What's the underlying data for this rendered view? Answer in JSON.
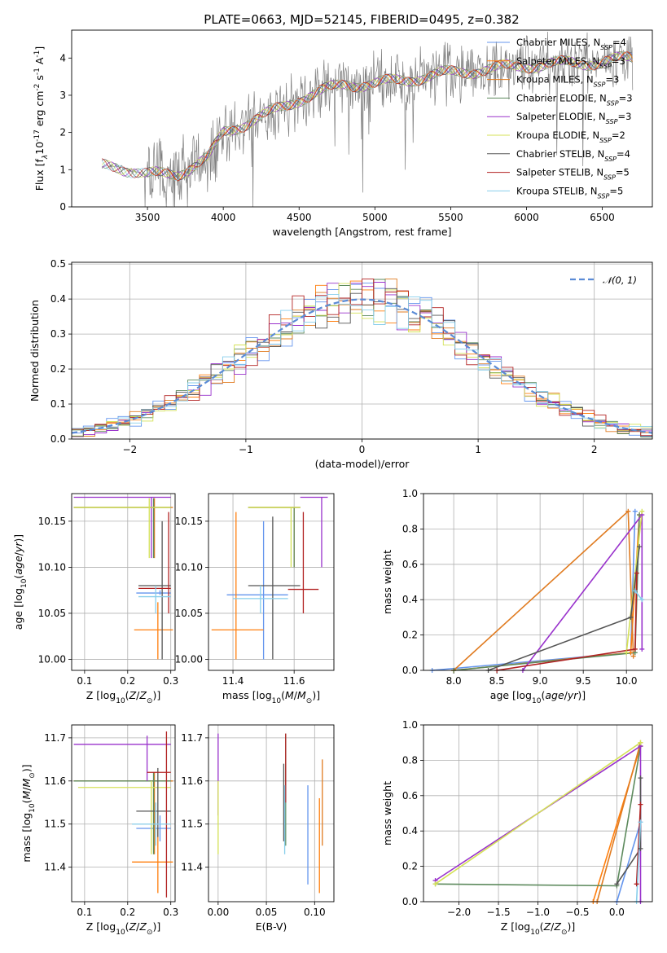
{
  "figure": {
    "title": "PLATE=0663, MJD=52145, FIBERID=0495, z=0.382"
  },
  "models": [
    {
      "name": "Chabrier MILES",
      "nssp": "4",
      "color": "#6495ed"
    },
    {
      "name": "Salpeter MILES",
      "nssp": "3",
      "color": "#ff7f0e"
    },
    {
      "name": "Kroupa MILES",
      "nssp": "3",
      "color": "#e07b20"
    },
    {
      "name": "Chabrier ELODIE",
      "nssp": "3",
      "color": "#5d8a5d"
    },
    {
      "name": "Salpeter ELODIE",
      "nssp": "3",
      "color": "#9932cc"
    },
    {
      "name": "Kroupa ELODIE",
      "nssp": "2",
      "color": "#d4e157"
    },
    {
      "name": "Chabrier STELIB",
      "nssp": "4",
      "color": "#555555"
    },
    {
      "name": "Salpeter STELIB",
      "nssp": "5",
      "color": "#b22222"
    },
    {
      "name": "Kroupa STELIB",
      "nssp": "5",
      "color": "#87ceeb"
    }
  ],
  "chart_data": [
    {
      "id": "spectrum",
      "type": "line",
      "xlabel": "wavelength [Angstrom, rest frame]",
      "ylabel": "Flux [f_λ10^-17 erg cm^-2 s^-1 A^-1]",
      "xlim": [
        3000,
        6830
      ],
      "ylim": [
        0,
        4.75
      ],
      "xticks": [
        3500,
        4000,
        4500,
        5000,
        5500,
        6000,
        6500
      ],
      "yticks": [
        0,
        1,
        2,
        3,
        4
      ],
      "legend": "upper-right",
      "data_color": "#808080",
      "continuum": {
        "x": [
          3200,
          3300,
          3500,
          3700,
          3900,
          4000,
          4300,
          4500,
          4800,
          5000,
          5500,
          6000,
          6500,
          6700
        ],
        "y": [
          1.1,
          1.1,
          0.85,
          0.9,
          1.3,
          2.0,
          2.5,
          2.9,
          3.3,
          3.3,
          3.6,
          3.8,
          3.9,
          4.0
        ]
      }
    },
    {
      "id": "residuals",
      "type": "line",
      "xlabel": "(data-model)/error",
      "ylabel": "Normed distribution",
      "xlim": [
        -2.5,
        2.5
      ],
      "ylim": [
        0,
        0.505
      ],
      "xticks": [
        -2,
        -1,
        0,
        1,
        2
      ],
      "yticks": [
        0.0,
        0.1,
        0.2,
        0.3,
        0.4,
        0.5
      ],
      "grid": true,
      "legend": "upper-right",
      "reference_label": "𝒩(0, 1)",
      "reference_color": "#5b8bd6"
    },
    {
      "id": "age-vs-z",
      "type": "scatter",
      "xlabel": "Z [log10(Z/Z⊙)]",
      "ylabel": "age [log10(age/yr)]",
      "xlim": [
        0.07,
        0.31
      ],
      "ylim": [
        9.988,
        10.18
      ],
      "xticks": [
        0.1,
        0.2,
        0.3
      ],
      "yticks": [
        10.0,
        10.05,
        10.1,
        10.15
      ],
      "grid": true,
      "points": [
        {
          "m": 0,
          "x": 0.275,
          "y": 10.072,
          "xe": [
            0.22,
            0.3
          ],
          "ye": [
            10.07,
            10.075
          ]
        },
        {
          "m": 1,
          "x": 0.27,
          "y": 10.032,
          "xe": [
            0.215,
            0.305
          ],
          "ye": [
            10.0,
            10.062
          ]
        },
        {
          "m": 2,
          "x": 0.262,
          "y": 10.165,
          "xe": [
            0.075,
            0.305
          ],
          "ye": [
            10.11,
            10.175
          ]
        },
        {
          "m": 3,
          "x": 0.26,
          "y": 10.165,
          "xe": [
            0.075,
            0.3
          ],
          "ye": [
            10.11,
            10.175
          ]
        },
        {
          "m": 4,
          "x": 0.255,
          "y": 10.176,
          "xe": [
            0.075,
            0.3
          ],
          "ye": [
            10.11,
            10.176
          ]
        },
        {
          "m": 5,
          "x": 0.25,
          "y": 10.165,
          "xe": [
            0.075,
            0.3
          ],
          "ye": [
            10.11,
            10.175
          ]
        },
        {
          "m": 6,
          "x": 0.28,
          "y": 10.08,
          "xe": [
            0.225,
            0.3
          ],
          "ye": [
            10.0,
            10.15
          ]
        },
        {
          "m": 7,
          "x": 0.295,
          "y": 10.077,
          "xe": [
            0.225,
            0.3
          ],
          "ye": [
            10.05,
            10.16
          ]
        },
        {
          "m": 8,
          "x": 0.265,
          "y": 10.068,
          "xe": [
            0.225,
            0.3
          ],
          "ye": [
            10.05,
            10.08
          ]
        }
      ]
    },
    {
      "id": "age-vs-mass",
      "type": "scatter",
      "xlabel": "mass [log10(M/M⊙)]",
      "ylabel": "",
      "xlim": [
        11.32,
        11.73
      ],
      "ylim": [
        9.988,
        10.18
      ],
      "xticks": [
        11.4,
        11.6
      ],
      "yticks": [
        10.0,
        10.05,
        10.1,
        10.15
      ],
      "grid": true,
      "points": [
        {
          "m": 0,
          "x": 11.5,
          "y": 10.07,
          "xe": [
            11.38,
            11.58
          ],
          "ye": [
            10.0,
            10.15
          ]
        },
        {
          "m": 1,
          "x": 11.41,
          "y": 10.032,
          "xe": [
            11.33,
            11.5
          ],
          "ye": [
            10.0,
            10.16
          ]
        },
        {
          "m": 2,
          "x": 11.6,
          "y": 10.165,
          "xe": [
            11.45,
            11.62
          ],
          "ye": [
            10.1,
            10.165
          ]
        },
        {
          "m": 3,
          "x": 11.6,
          "y": 10.165,
          "xe": [
            11.45,
            11.62
          ],
          "ye": [
            10.1,
            10.165
          ]
        },
        {
          "m": 4,
          "x": 11.69,
          "y": 10.176,
          "xe": [
            11.62,
            11.71
          ],
          "ye": [
            10.1,
            10.176
          ]
        },
        {
          "m": 5,
          "x": 11.59,
          "y": 10.165,
          "xe": [
            11.45,
            11.62
          ],
          "ye": [
            10.1,
            10.165
          ]
        },
        {
          "m": 6,
          "x": 11.53,
          "y": 10.08,
          "xe": [
            11.45,
            11.62
          ],
          "ye": [
            10.0,
            10.155
          ]
        },
        {
          "m": 7,
          "x": 11.63,
          "y": 10.076,
          "xe": [
            11.58,
            11.68
          ],
          "ye": [
            10.05,
            10.16
          ]
        },
        {
          "m": 8,
          "x": 11.49,
          "y": 10.066,
          "xe": [
            11.4,
            11.58
          ],
          "ye": [
            10.05,
            10.08
          ]
        }
      ]
    },
    {
      "id": "weight-vs-age",
      "type": "line",
      "xlabel": "age [log10(age/yr)]",
      "ylabel": "mass weight",
      "xlim": [
        7.65,
        10.3
      ],
      "ylim": [
        0,
        1.0
      ],
      "xticks": [
        8.0,
        8.5,
        9.0,
        9.5,
        10.0
      ],
      "yticks": [
        0.0,
        0.2,
        0.4,
        0.6,
        0.8,
        1.0
      ],
      "grid": true,
      "series": [
        {
          "m": 0,
          "x": [
            7.75,
            10.05,
            10.1
          ],
          "y": [
            0.0,
            0.1,
            0.9
          ]
        },
        {
          "m": 1,
          "x": [
            8.0,
            10.05,
            10.15
          ],
          "y": [
            0.0,
            0.1,
            0.88
          ]
        },
        {
          "m": 2,
          "x": [
            8.0,
            10.02,
            10.08
          ],
          "y": [
            0.0,
            0.9,
            0.08
          ]
        },
        {
          "m": 3,
          "x": [
            8.0,
            10.1,
            10.15
          ],
          "y": [
            0.0,
            0.1,
            0.88
          ]
        },
        {
          "m": 4,
          "x": [
            8.8,
            10.18,
            10.18
          ],
          "y": [
            0.0,
            0.88,
            0.12
          ]
        },
        {
          "m": 5,
          "x": [
            10.0,
            10.18
          ],
          "y": [
            0.1,
            0.9
          ]
        },
        {
          "m": 6,
          "x": [
            8.4,
            10.05,
            10.15
          ],
          "y": [
            0.0,
            0.3,
            0.7
          ]
        },
        {
          "m": 7,
          "x": [
            8.5,
            10.1,
            10.12
          ],
          "y": [
            0.0,
            0.12,
            0.55
          ]
        },
        {
          "m": 8,
          "x": [
            10.1,
            10.18
          ],
          "y": [
            0.45,
            0.4
          ]
        }
      ]
    },
    {
      "id": "mass-vs-z",
      "type": "scatter",
      "xlabel": "Z [log10(Z/Z⊙)]",
      "ylabel": "mass [log10(M/M⊙)]",
      "xlim": [
        0.07,
        0.31
      ],
      "ylim": [
        11.32,
        11.73
      ],
      "xticks": [
        0.1,
        0.2,
        0.3
      ],
      "yticks": [
        11.4,
        11.5,
        11.6,
        11.7
      ],
      "grid": true,
      "points": [
        {
          "m": 0,
          "x": 0.275,
          "y": 11.49,
          "xe": [
            0.22,
            0.3
          ],
          "ye": [
            11.46,
            11.52
          ]
        },
        {
          "m": 1,
          "x": 0.27,
          "y": 11.412,
          "xe": [
            0.21,
            0.305
          ],
          "ye": [
            11.34,
            11.49
          ]
        },
        {
          "m": 2,
          "x": 0.262,
          "y": 11.6,
          "xe": [
            0.075,
            0.305
          ],
          "ye": [
            11.43,
            11.62
          ]
        },
        {
          "m": 3,
          "x": 0.26,
          "y": 11.6,
          "xe": [
            0.075,
            0.3
          ],
          "ye": [
            11.43,
            11.62
          ]
        },
        {
          "m": 4,
          "x": 0.245,
          "y": 11.685,
          "xe": [
            0.075,
            0.3
          ],
          "ye": [
            11.6,
            11.705
          ]
        },
        {
          "m": 5,
          "x": 0.255,
          "y": 11.585,
          "xe": [
            0.085,
            0.3
          ],
          "ye": [
            11.43,
            11.6
          ]
        },
        {
          "m": 6,
          "x": 0.27,
          "y": 11.53,
          "xe": [
            0.22,
            0.3
          ],
          "ye": [
            11.47,
            11.63
          ]
        },
        {
          "m": 7,
          "x": 0.29,
          "y": 11.62,
          "xe": [
            0.245,
            0.3
          ],
          "ye": [
            11.33,
            11.715
          ]
        },
        {
          "m": 8,
          "x": 0.265,
          "y": 11.5,
          "xe": [
            0.21,
            0.3
          ],
          "ye": [
            11.45,
            11.55
          ]
        }
      ]
    },
    {
      "id": "mass-vs-ebv",
      "type": "scatter",
      "xlabel": "E(B-V)",
      "ylabel": "",
      "xlim": [
        -0.01,
        0.12
      ],
      "ylim": [
        11.32,
        11.73
      ],
      "xticks": [
        0.0,
        0.05,
        0.1
      ],
      "yticks": [
        11.4,
        11.5,
        11.6,
        11.7
      ],
      "grid": true,
      "points": [
        {
          "m": 0,
          "x": 0.093,
          "y": 11.47,
          "ye": [
            11.36,
            11.59
          ]
        },
        {
          "m": 1,
          "x": 0.105,
          "y": 11.45,
          "ye": [
            11.34,
            11.56
          ]
        },
        {
          "m": 2,
          "x": 0.108,
          "y": 11.55,
          "ye": [
            11.45,
            11.65
          ]
        },
        {
          "m": 3,
          "x": 0.07,
          "y": 11.58,
          "ye": [
            11.45,
            11.71
          ]
        },
        {
          "m": 4,
          "x": 0.0,
          "y": 11.62,
          "ye": [
            11.52,
            11.71
          ]
        },
        {
          "m": 5,
          "x": 0.0,
          "y": 11.52,
          "ye": [
            11.43,
            11.6
          ]
        },
        {
          "m": 6,
          "x": 0.068,
          "y": 11.55,
          "ye": [
            11.46,
            11.64
          ]
        },
        {
          "m": 7,
          "x": 0.07,
          "y": 11.63,
          "ye": [
            11.55,
            11.71
          ]
        },
        {
          "m": 8,
          "x": 0.069,
          "y": 11.5,
          "ye": [
            11.43,
            11.59
          ]
        }
      ]
    },
    {
      "id": "weight-vs-z",
      "type": "line",
      "xlabel": "Z [log10(Z/Z⊙)]",
      "ylabel": "mass weight",
      "xlim": [
        -2.45,
        0.45
      ],
      "ylim": [
        0,
        1.0
      ],
      "xticks": [
        -2.0,
        -1.5,
        -1.0,
        -0.5,
        0.0
      ],
      "yticks": [
        0.0,
        0.2,
        0.4,
        0.6,
        0.8,
        1.0
      ],
      "grid": true,
      "series": [
        {
          "m": 0,
          "x": [
            0.0,
            0.3
          ],
          "y": [
            0.0,
            0.45
          ]
        },
        {
          "m": 1,
          "x": [
            -0.3,
            0.3
          ],
          "y": [
            0.0,
            0.88
          ]
        },
        {
          "m": 2,
          "x": [
            -0.25,
            0.3
          ],
          "y": [
            0.0,
            0.9
          ]
        },
        {
          "m": 3,
          "x": [
            -2.3,
            0.0,
            0.3
          ],
          "y": [
            0.1,
            0.09,
            0.88
          ]
        },
        {
          "m": 4,
          "x": [
            -2.3,
            0.3,
            0.3
          ],
          "y": [
            0.12,
            0.88,
            0.0
          ]
        },
        {
          "m": 5,
          "x": [
            -2.3,
            0.3
          ],
          "y": [
            0.1,
            0.9
          ]
        },
        {
          "m": 6,
          "x": [
            0.0,
            0.3,
            0.3
          ],
          "y": [
            0.1,
            0.3,
            0.7
          ]
        },
        {
          "m": 7,
          "x": [
            0.25,
            0.3
          ],
          "y": [
            0.1,
            0.55
          ]
        },
        {
          "m": 8,
          "x": [
            0.25,
            0.3
          ],
          "y": [
            0.0,
            0.45
          ]
        }
      ]
    }
  ]
}
